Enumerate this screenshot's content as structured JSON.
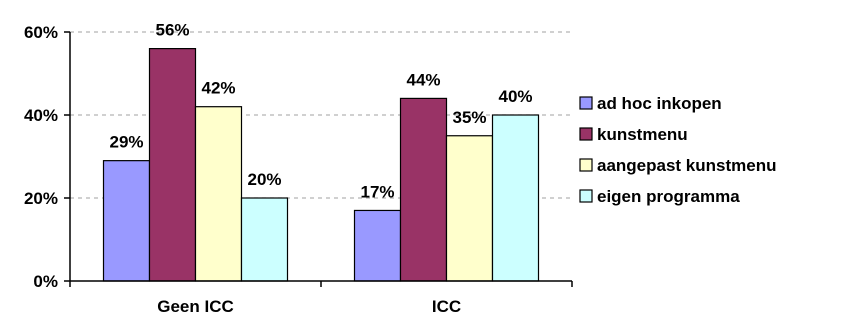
{
  "chart_data": {
    "type": "bar",
    "title": "",
    "xlabel": "",
    "ylabel": "",
    "categories": [
      "Geen ICC",
      "ICC"
    ],
    "ylim": [
      0,
      60
    ],
    "yticks": [
      "0%",
      "20%",
      "40%",
      "60%"
    ],
    "grid": true,
    "legend_position": "right",
    "series": [
      {
        "name": "ad hoc inkopen",
        "color": "#9999ff",
        "values": [
          29,
          17
        ],
        "labels": [
          "29%",
          "17%"
        ]
      },
      {
        "name": "kunstmenu",
        "color": "#993366",
        "values": [
          56,
          44
        ],
        "labels": [
          "56%",
          "44%"
        ]
      },
      {
        "name": "aangepast kunstmenu",
        "color": "#ffffcc",
        "values": [
          42,
          35
        ],
        "labels": [
          "42%",
          "35%"
        ]
      },
      {
        "name": "eigen programma",
        "color": "#ccffff",
        "values": [
          20,
          40
        ],
        "labels": [
          "20%",
          "40%"
        ]
      }
    ]
  }
}
